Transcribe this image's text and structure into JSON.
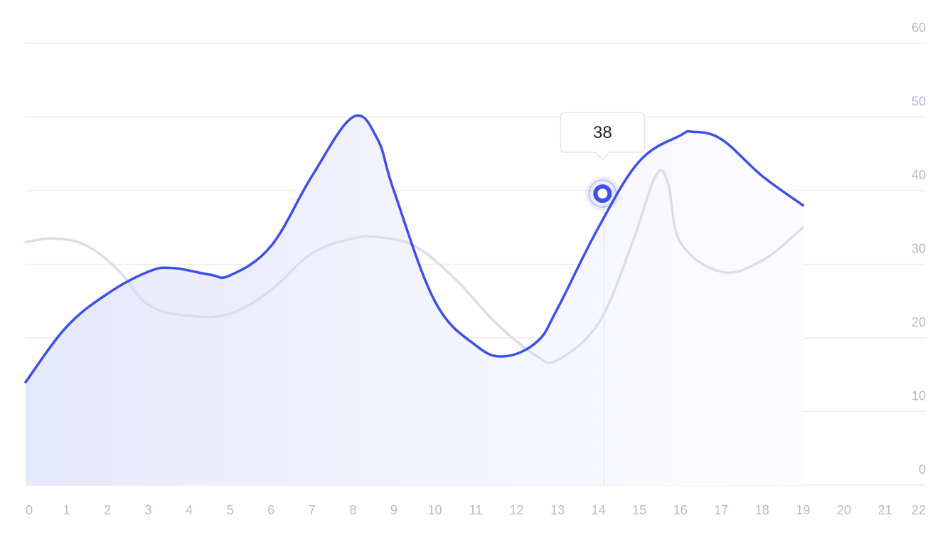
{
  "chart_data": {
    "type": "line",
    "title": "",
    "xlabel": "",
    "ylabel": "",
    "x_ticks": [
      "0",
      "1",
      "2",
      "3",
      "4",
      "5",
      "6",
      "7",
      "8",
      "9",
      "10",
      "11",
      "12",
      "13",
      "14",
      "15",
      "16",
      "17",
      "18",
      "19",
      "20",
      "21",
      "22"
    ],
    "y_ticks": [
      "0",
      "10",
      "20",
      "30",
      "40",
      "50",
      "60"
    ],
    "xlim": [
      0,
      22
    ],
    "ylim": [
      0,
      60
    ],
    "grid": true,
    "y_axis_position": "right",
    "series": [
      {
        "color": "#3d4fe8",
        "filled": true,
        "x": [
          0,
          1,
          2,
          3,
          3.6,
          4.5,
          5,
          6,
          7,
          8,
          8.6,
          9,
          10,
          11,
          11.7,
          12.5,
          13,
          14,
          15,
          16,
          16.3,
          17,
          18,
          19
        ],
        "y": [
          14,
          21.5,
          26,
          29,
          29.5,
          28.6,
          28.5,
          32.5,
          42,
          50,
          47,
          40,
          25,
          19,
          17.5,
          19.5,
          24,
          35,
          44,
          47.5,
          48,
          47,
          42,
          38
        ]
      },
      {
        "color": "#dcdceb",
        "filled": false,
        "x": [
          0,
          0.7,
          1.5,
          2.3,
          3,
          4,
          5,
          6,
          7,
          8,
          8.6,
          9.5,
          10.5,
          11.5,
          12.5,
          13,
          14,
          14.8,
          15.4,
          15.7,
          16,
          17,
          18,
          19
        ],
        "y": [
          33,
          33.5,
          32.5,
          29,
          24.5,
          23,
          23.3,
          26.5,
          31.5,
          33.5,
          33.7,
          32.5,
          28,
          22,
          17.5,
          17,
          22,
          32.5,
          42,
          41,
          33,
          29,
          30.5,
          35
        ]
      }
    ],
    "tooltip": {
      "x": 14.1,
      "y": 39.6,
      "label": "38"
    }
  }
}
